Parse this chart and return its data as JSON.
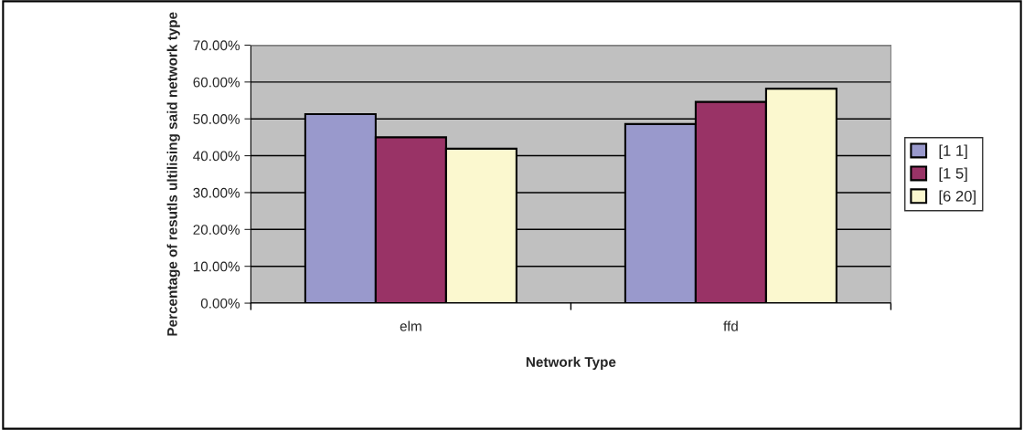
{
  "chart_data": {
    "type": "bar",
    "xlabel": "Network Type",
    "ylabel": "Percentage of resutls ultilising said network type",
    "categories": [
      "elm",
      "ffd"
    ],
    "series": [
      {
        "name": "[1 1]",
        "color": "#9999cc",
        "values": [
          51.3,
          48.6
        ]
      },
      {
        "name": "[1 5]",
        "color": "#993366",
        "values": [
          45.0,
          54.6
        ]
      },
      {
        "name": "[6 20]",
        "color": "#fbf8cf",
        "values": [
          41.9,
          58.2
        ]
      }
    ],
    "ylim": [
      0,
      70
    ],
    "yticks": [
      {
        "value": 0,
        "label": "0.00%"
      },
      {
        "value": 10,
        "label": "10.00%"
      },
      {
        "value": 20,
        "label": "20.00%"
      },
      {
        "value": 30,
        "label": "30.00%"
      },
      {
        "value": 40,
        "label": "40.00%"
      },
      {
        "value": 50,
        "label": "50.00%"
      },
      {
        "value": 60,
        "label": "60.00%"
      },
      {
        "value": 70,
        "label": "70.00%"
      }
    ],
    "grid": "y",
    "legend": "right"
  }
}
